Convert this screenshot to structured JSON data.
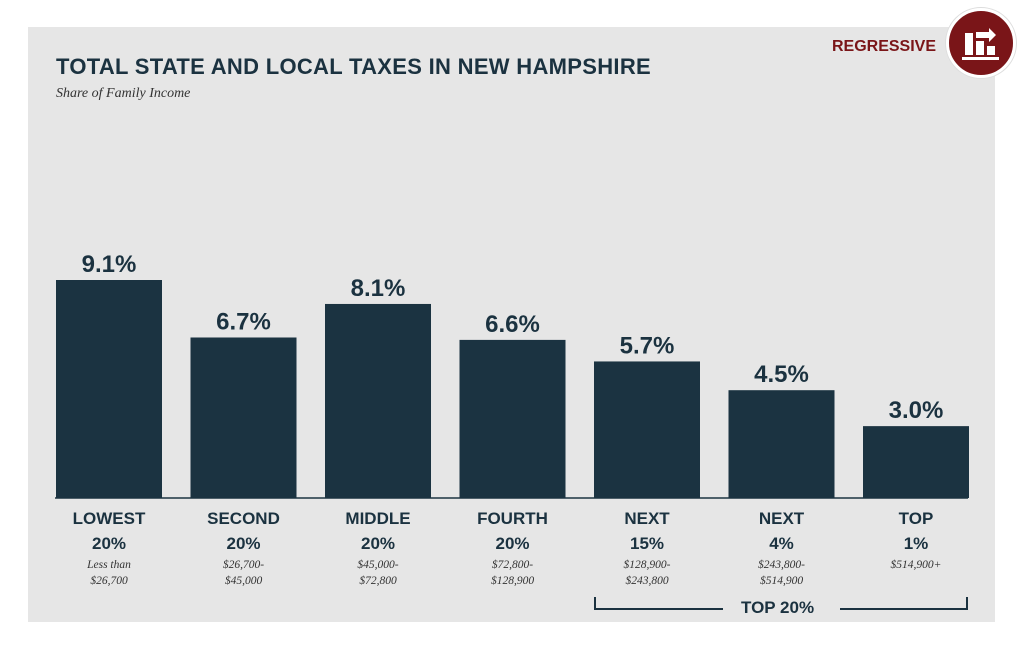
{
  "header": {
    "title": "TOTAL STATE AND LOCAL TAXES IN NEW HAMPSHIRE",
    "subtitle": "Share of Family Income",
    "badge_label": "REGRESSIVE",
    "badge_icon": "regressive-bars-icon"
  },
  "colors": {
    "bar": "#1b3341",
    "badge": "#7a1518",
    "panel": "#e6e6e6"
  },
  "chart_data": {
    "type": "bar",
    "title": "TOTAL STATE AND LOCAL TAXES IN NEW HAMPSHIRE",
    "subtitle": "Share of Family Income",
    "ylim": [
      0,
      10
    ],
    "grid": false,
    "categories": [
      {
        "line1": "LOWEST",
        "line2": "20%",
        "range1": "Less than",
        "range2": "$26,700"
      },
      {
        "line1": "SECOND",
        "line2": "20%",
        "range1": "$26,700-",
        "range2": "$45,000"
      },
      {
        "line1": "MIDDLE",
        "line2": "20%",
        "range1": "$45,000-",
        "range2": "$72,800"
      },
      {
        "line1": "FOURTH",
        "line2": "20%",
        "range1": "$72,800-",
        "range2": "$128,900"
      },
      {
        "line1": "NEXT",
        "line2": "15%",
        "range1": "$128,900-",
        "range2": "$243,800"
      },
      {
        "line1": "NEXT",
        "line2": "4%",
        "range1": "$243,800-",
        "range2": "$514,900"
      },
      {
        "line1": "TOP",
        "line2": "1%",
        "range1": "$514,900+",
        "range2": ""
      }
    ],
    "values": [
      9.1,
      6.7,
      8.1,
      6.6,
      5.7,
      4.5,
      3.0
    ],
    "value_labels": [
      "9.1%",
      "6.7%",
      "8.1%",
      "6.6%",
      "5.7%",
      "4.5%",
      "3.0%"
    ],
    "group_label": "TOP 20%"
  }
}
